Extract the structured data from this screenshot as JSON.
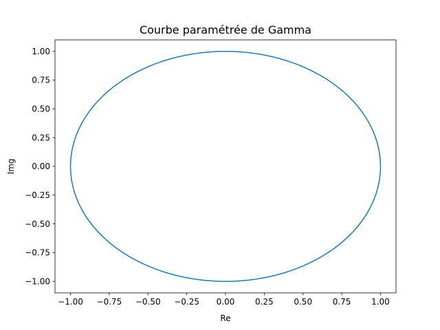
{
  "chart_data": {
    "type": "line",
    "title": "Courbe paramétrée de Gamma",
    "xlabel": "Re",
    "ylabel": "Img",
    "xlim": [
      -1.1,
      1.1
    ],
    "ylim": [
      -1.1,
      1.1
    ],
    "xticks": [
      -1.0,
      -0.75,
      -0.5,
      -0.25,
      0.0,
      0.25,
      0.5,
      0.75,
      1.0
    ],
    "yticks": [
      -1.0,
      -0.75,
      -0.5,
      -0.25,
      0.0,
      0.25,
      0.5,
      0.75,
      1.0
    ],
    "xtick_labels": [
      "−1.00",
      "−0.75",
      "−0.50",
      "−0.25",
      "0.00",
      "0.25",
      "0.50",
      "0.75",
      "1.00"
    ],
    "ytick_labels": [
      "−1.00",
      "−0.75",
      "−0.50",
      "−0.25",
      "0.00",
      "0.25",
      "0.50",
      "0.75",
      "1.00"
    ],
    "grid": false,
    "series": [
      {
        "color": "#1f77b4",
        "x": [
          1.0,
          0.866,
          0.5,
          0.0,
          -0.5,
          -0.866,
          -1.0,
          -0.866,
          -0.5,
          0.0,
          0.5,
          0.866,
          1.0
        ],
        "y": [
          0.0,
          0.5,
          0.866,
          1.0,
          0.866,
          0.5,
          0.0,
          -0.5,
          -0.866,
          -1.0,
          -0.866,
          -0.5,
          0.0
        ]
      }
    ]
  }
}
